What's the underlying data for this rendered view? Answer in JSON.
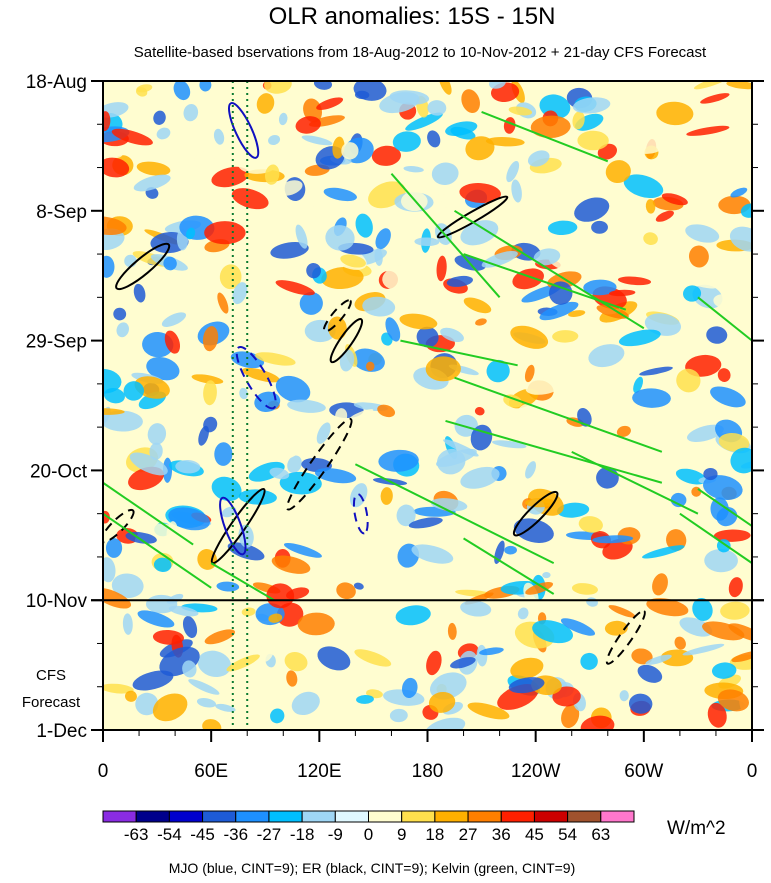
{
  "chart_data": {
    "type": "heatmap",
    "title": "OLR anomalies: 15S - 15N",
    "subtitle": "Satellite-based bservations from 18-Aug-2012 to 10-Nov-2012 + 21-day CFS Forecast",
    "x_ticks": [
      "0",
      "60E",
      "120E",
      "180",
      "120W",
      "60W",
      "0"
    ],
    "x_tick_lon": [
      0,
      60,
      120,
      180,
      240,
      300,
      360
    ],
    "y_ticks": [
      "18-Aug",
      "8-Sep",
      "29-Sep",
      "20-Oct",
      "10-Nov",
      "1-Dec"
    ],
    "y_tick_day": [
      0,
      21,
      42,
      63,
      84,
      105
    ],
    "observation_end_label": "10-Nov",
    "observation_end_day": 84,
    "forecast_label_line1": "CFS",
    "forecast_label_line2": "Forecast",
    "colorbar": {
      "unit": "W/m^2",
      "levels": [
        -63,
        -54,
        -45,
        -36,
        -27,
        -18,
        -9,
        0,
        9,
        18,
        27,
        36,
        45,
        54,
        63
      ],
      "colors": [
        "#8a2be2",
        "#00008b",
        "#0000cd",
        "#1e5bd6",
        "#1e90ff",
        "#00bfff",
        "#9fd6f5",
        "#e0f8ff",
        "#fffdd0",
        "#ffe04d",
        "#ffb000",
        "#ff7f00",
        "#ff2000",
        "#cc0000",
        "#a0522d",
        "#ff77cc"
      ]
    },
    "footer": "MJO (blue, CINT=9); ER (black, CINT=9); Kelvin (green, CINT=9)",
    "mjo_colors": {
      "mjo": "#1010c0",
      "er": "#000000",
      "kelvin": "#22cc22",
      "marker": "#0a7a30"
    }
  }
}
